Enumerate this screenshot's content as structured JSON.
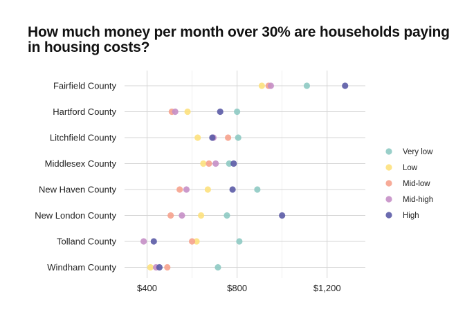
{
  "chart_data": {
    "type": "scatter",
    "title": "How much money per month over 30% are households paying in housing costs?",
    "xlabel": "",
    "ylabel": "",
    "xlim": [
      300,
      1370
    ],
    "x_ticks": [
      400,
      800,
      1200
    ],
    "x_tick_labels": [
      "$400",
      "$800",
      "$1,200"
    ],
    "categories": [
      "Fairfield County",
      "Hartford County",
      "Litchfield County",
      "Middlesex County",
      "New Haven County",
      "New London County",
      "Tolland County",
      "Windham County"
    ],
    "series": [
      {
        "name": "Very low",
        "color": "#8ECAC3",
        "values": [
          1110,
          800,
          805,
          765,
          890,
          755,
          810,
          715
        ]
      },
      {
        "name": "Low",
        "color": "#FDE17D",
        "values": [
          910,
          580,
          625,
          650,
          670,
          640,
          620,
          415
        ]
      },
      {
        "name": "Mid-low",
        "color": "#F6A28D",
        "values": [
          940,
          510,
          760,
          675,
          545,
          505,
          600,
          490
        ]
      },
      {
        "name": "Mid-high",
        "color": "#C58FC6",
        "values": [
          950,
          525,
          695,
          705,
          575,
          555,
          385,
          440
        ]
      },
      {
        "name": "High",
        "color": "#5B5BA6",
        "values": [
          1280,
          725,
          690,
          785,
          780,
          1000,
          430,
          455
        ]
      }
    ],
    "grid": true,
    "legend_position": "right"
  }
}
